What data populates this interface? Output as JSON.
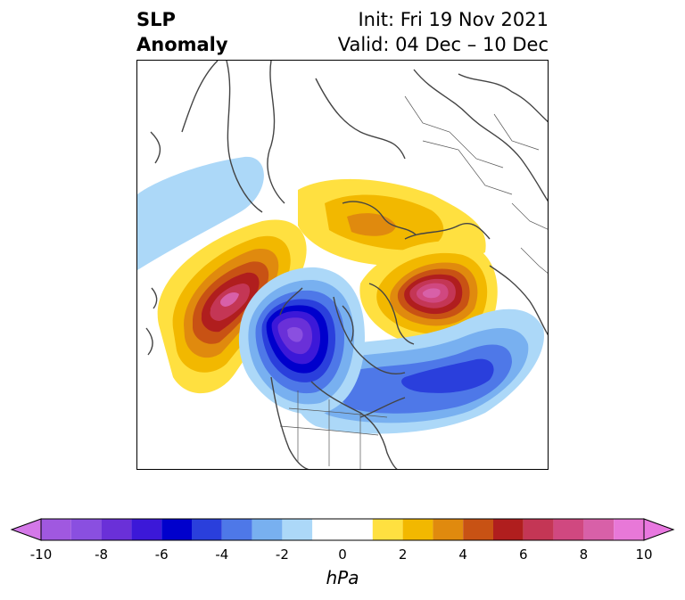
{
  "title": {
    "left_line1": "SLP",
    "left_line2": "Anomaly",
    "right_line1": "Init: Fri 19 Nov 2021",
    "right_line2": "Valid: 04 Dec – 10 Dec"
  },
  "map": {
    "projection": "north-polar-stereographic",
    "features": [
      {
        "name": "positive-anomaly-north-pacific",
        "peak_hPa": 9
      },
      {
        "name": "positive-anomaly-northern-europe",
        "peak_hPa": 9
      },
      {
        "name": "positive-anomaly-arctic",
        "peak_hPa": 3
      },
      {
        "name": "negative-anomaly-canada",
        "peak_hPa": -9
      },
      {
        "name": "negative-anomaly-north-atlantic",
        "peak_hPa": -6
      },
      {
        "name": "negative-anomaly-east-asia",
        "peak_hPa": -2
      }
    ]
  },
  "colorbar": {
    "units_label": "hPa",
    "tick_labels": [
      "-10",
      "-8",
      "-6",
      "-4",
      "-2",
      "0",
      "2",
      "4",
      "6",
      "8",
      "10"
    ],
    "bins": [
      {
        "range": "-10 to -9",
        "color": "#a058e0"
      },
      {
        "range": "-9 to -8",
        "color": "#8a4fe0"
      },
      {
        "range": "-8 to -7",
        "color": "#6a30d8"
      },
      {
        "range": "-7 to -6",
        "color": "#3c18d8"
      },
      {
        "range": "-6 to -5",
        "color": "#0000cc"
      },
      {
        "range": "-5 to -4",
        "color": "#2a3fdc"
      },
      {
        "range": "-4 to -3",
        "color": "#4e78e8"
      },
      {
        "range": "-3 to -2",
        "color": "#78b0f0"
      },
      {
        "range": "-2 to -1",
        "color": "#acd8f8"
      },
      {
        "range": "-1 to 1",
        "color": "#ffffff"
      },
      {
        "range": "1 to 2",
        "color": "#ffe040"
      },
      {
        "range": "2 to 3",
        "color": "#f2b800"
      },
      {
        "range": "3 to 4",
        "color": "#e08a0e"
      },
      {
        "range": "4 to 5",
        "color": "#c85214"
      },
      {
        "range": "5 to 6",
        "color": "#b01e1e"
      },
      {
        "range": "6 to 7",
        "color": "#c43655"
      },
      {
        "range": "7 to 8",
        "color": "#d04880"
      },
      {
        "range": "8 to 9",
        "color": "#d860a8"
      },
      {
        "range": "9 to 10",
        "color": "#e878d8"
      }
    ],
    "extend_low_color": "#d478e8",
    "extend_high_color": "#e878e0"
  }
}
